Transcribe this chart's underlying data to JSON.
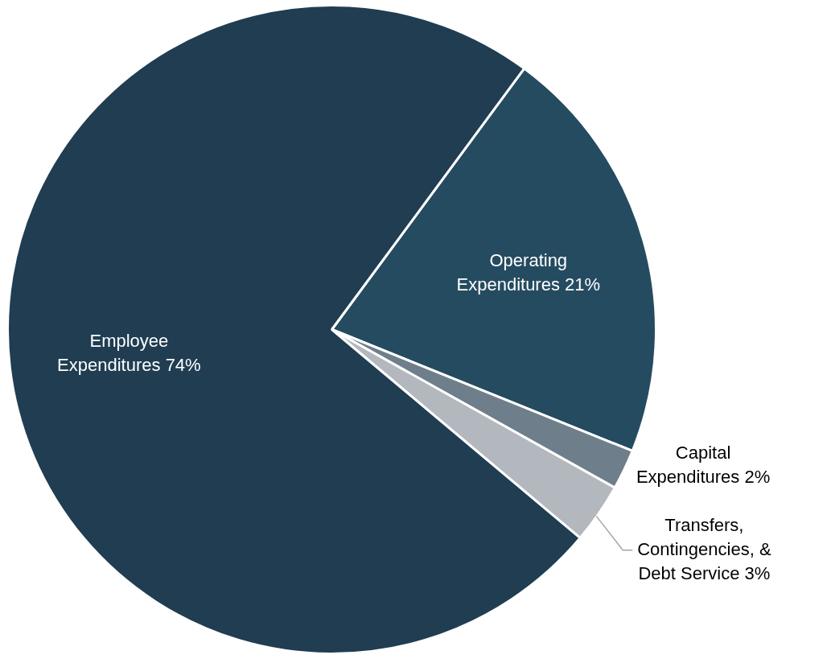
{
  "chart_data": {
    "type": "pie",
    "categories": [
      "Operating Expenditures",
      "Capital Expenditures",
      "Transfers, Contingencies, & Debt Service",
      "Employee Expenditures"
    ],
    "values": [
      21,
      2,
      3,
      74
    ],
    "value_labels": [
      "21%",
      "2%",
      "3%",
      "74%"
    ],
    "colors": [
      "#254b60",
      "#6e7f8b",
      "#b3b8be",
      "#203d52"
    ],
    "legend": false
  }
}
